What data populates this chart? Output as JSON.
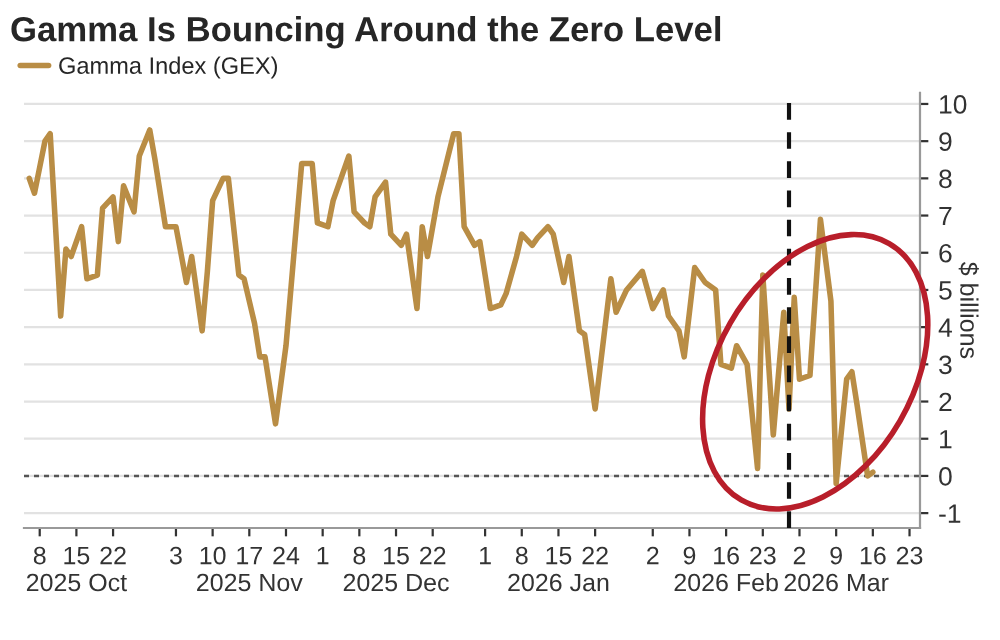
{
  "chart_data": {
    "type": "line",
    "title": "Gamma Is Bouncing Around the Zero Level",
    "ylabel": "$ billions",
    "series": [
      {
        "name": "Gamma Index (GEX)",
        "color": "#b98d45",
        "x": [
          "2025-10-06",
          "2025-10-07",
          "2025-10-09",
          "2025-10-10",
          "2025-10-12",
          "2025-10-13",
          "2025-10-14",
          "2025-10-16",
          "2025-10-17",
          "2025-10-19",
          "2025-10-20",
          "2025-10-22",
          "2025-10-23",
          "2025-10-24",
          "2025-10-26",
          "2025-10-27",
          "2025-10-29",
          "2025-10-30",
          "2025-11-01",
          "2025-11-03",
          "2025-11-05",
          "2025-11-06",
          "2025-11-08",
          "2025-11-09",
          "2025-11-10",
          "2025-11-12",
          "2025-11-13",
          "2025-11-15",
          "2025-11-16",
          "2025-11-18",
          "2025-11-19",
          "2025-11-20",
          "2025-11-22",
          "2025-11-24",
          "2025-11-27",
          "2025-11-29",
          "2025-11-30",
          "2025-12-02",
          "2025-12-03",
          "2025-12-06",
          "2025-12-07",
          "2025-12-09",
          "2025-12-10",
          "2025-12-11",
          "2025-12-13",
          "2025-12-14",
          "2025-12-16",
          "2025-12-17",
          "2025-12-19",
          "2025-12-20",
          "2025-12-21",
          "2025-12-23",
          "2025-12-26",
          "2025-12-27",
          "2025-12-28",
          "2025-12-30",
          "2025-12-31",
          "2026-01-02",
          "2026-01-04",
          "2026-01-05",
          "2026-01-07",
          "2026-01-08",
          "2026-01-10",
          "2026-01-11",
          "2026-01-13",
          "2026-01-14",
          "2026-01-16",
          "2026-01-17",
          "2026-01-19",
          "2026-01-20",
          "2026-01-22",
          "2026-01-25",
          "2026-01-26",
          "2026-01-28",
          "2026-01-31",
          "2026-02-02",
          "2026-02-04",
          "2026-02-05",
          "2026-02-07",
          "2026-02-08",
          "2026-02-10",
          "2026-02-12",
          "2026-02-14",
          "2026-02-15",
          "2026-02-17",
          "2026-02-18",
          "2026-02-20",
          "2026-02-22",
          "2026-02-23",
          "2026-02-25",
          "2026-02-27",
          "2026-02-28",
          "2026-03-01",
          "2026-03-02",
          "2026-03-04",
          "2026-03-06",
          "2026-03-08",
          "2026-03-09",
          "2026-03-11",
          "2026-03-12",
          "2026-03-13",
          "2026-03-15",
          "2026-03-16"
        ],
        "values": [
          8.0,
          7.6,
          9.0,
          9.2,
          4.3,
          6.1,
          5.9,
          6.7,
          5.3,
          5.4,
          7.2,
          7.5,
          6.3,
          7.8,
          7.1,
          8.6,
          9.3,
          8.5,
          6.7,
          6.7,
          5.2,
          5.9,
          3.9,
          5.5,
          7.4,
          8.0,
          8.0,
          5.4,
          5.3,
          4.1,
          3.2,
          3.2,
          1.4,
          3.5,
          8.4,
          8.4,
          6.8,
          6.7,
          7.4,
          8.6,
          7.1,
          6.8,
          6.7,
          7.5,
          7.9,
          6.5,
          6.2,
          6.5,
          4.5,
          6.7,
          5.9,
          7.5,
          9.2,
          9.2,
          6.7,
          6.2,
          6.3,
          4.5,
          4.6,
          4.9,
          5.9,
          6.5,
          6.2,
          6.4,
          6.7,
          6.5,
          5.2,
          5.9,
          3.9,
          3.8,
          1.8,
          5.3,
          4.4,
          5.0,
          5.5,
          4.5,
          5.0,
          4.3,
          3.9,
          3.2,
          5.6,
          5.2,
          5.0,
          3.0,
          2.9,
          3.5,
          3.0,
          0.2,
          5.4,
          1.1,
          4.4,
          1.8,
          4.8,
          2.6,
          2.7,
          6.9,
          4.7,
          -0.2,
          2.6,
          2.8,
          1.9,
          0.0,
          0.1
        ]
      }
    ],
    "xlim": [
      "2025-10-05",
      "2026-03-25"
    ],
    "xticks": [
      {
        "value": "2025-10-08",
        "label": "8"
      },
      {
        "value": "2025-10-15",
        "label": "15\n2025 Oct"
      },
      {
        "value": "2025-10-22",
        "label": "22"
      },
      {
        "value": "2025-11-03",
        "label": "3"
      },
      {
        "value": "2025-11-10",
        "label": "10"
      },
      {
        "value": "2025-11-17",
        "label": "17\n2025 Nov"
      },
      {
        "value": "2025-11-24",
        "label": "24"
      },
      {
        "value": "2025-12-01",
        "label": "1"
      },
      {
        "value": "2025-12-08",
        "label": "8"
      },
      {
        "value": "2025-12-15",
        "label": "15\n2025 Dec"
      },
      {
        "value": "2025-12-22",
        "label": "22"
      },
      {
        "value": "2026-01-01",
        "label": "1"
      },
      {
        "value": "2026-01-08",
        "label": "8"
      },
      {
        "value": "2026-01-15",
        "label": "15\n2026 Jan"
      },
      {
        "value": "2026-01-22",
        "label": "22"
      },
      {
        "value": "2026-02-02",
        "label": "2"
      },
      {
        "value": "2026-02-09",
        "label": "9"
      },
      {
        "value": "2026-02-16",
        "label": "16\n2026 Feb"
      },
      {
        "value": "2026-02-23",
        "label": "23"
      },
      {
        "value": "2026-03-02",
        "label": "2"
      },
      {
        "value": "2026-03-09",
        "label": "9\n2026 Mar"
      },
      {
        "value": "2026-03-16",
        "label": "16"
      },
      {
        "value": "2026-03-23",
        "label": "23"
      }
    ],
    "ylim": [
      -1.4,
      10.3
    ],
    "yticks": [
      -1,
      0,
      1,
      2,
      3,
      4,
      5,
      6,
      7,
      8,
      9,
      10
    ],
    "grid": "y",
    "legend": "top left",
    "line_style": "solid",
    "marker": "none",
    "ref_lines": [
      {
        "axis": "y",
        "value": 0,
        "color": "#555555",
        "line_style": "dotted"
      },
      {
        "axis": "x",
        "value": "2026-02-28",
        "color": "#111111",
        "line_style": "dashed"
      }
    ]
  }
}
